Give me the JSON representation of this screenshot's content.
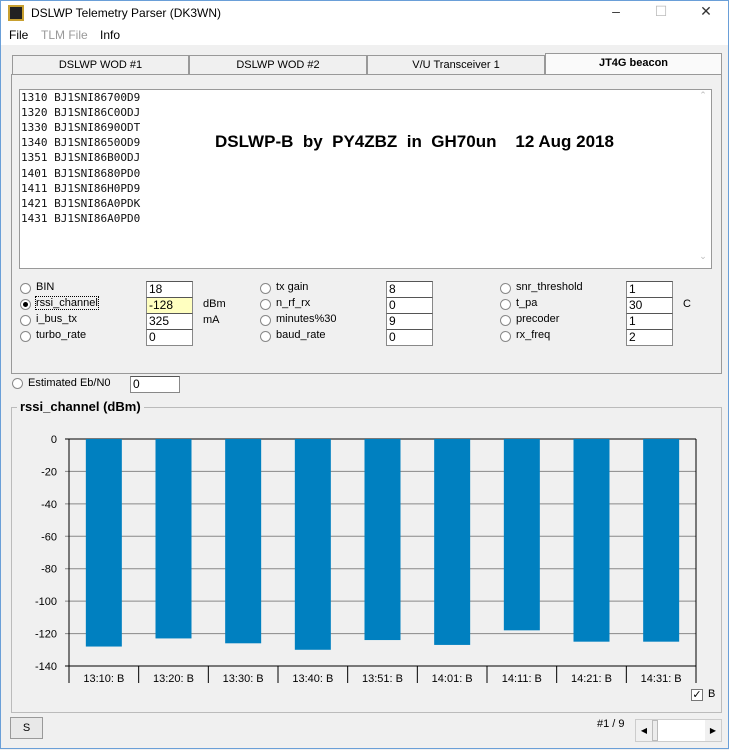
{
  "window": {
    "title": "DSLWP Telemetry Parser (DK3WN)",
    "controls": [
      "minimize",
      "maximize",
      "close"
    ]
  },
  "menu": [
    {
      "label": "File",
      "enabled": true
    },
    {
      "label": "TLM File",
      "enabled": false
    },
    {
      "label": "Info",
      "enabled": true
    }
  ],
  "tabs": [
    {
      "label": "DSLWP WOD #1"
    },
    {
      "label": "DSLWP WOD #2"
    },
    {
      "label": "V/U Transceiver 1"
    },
    {
      "label": "JT4G beacon",
      "active": true
    }
  ],
  "log_lines": [
    "1310 BJ1SNI86700D9",
    "1320 BJ1SNI86C0ODJ",
    "1330 BJ1SNI8690ODT",
    "1340 BJ1SNI8650OD9",
    "1351 BJ1SNI86B0ODJ",
    "1401 BJ1SNI8680PD0",
    "1411 BJ1SNI86H0PD9",
    "1421 BJ1SNI86A0PDK",
    "1431 BJ1SNI86A0PD0"
  ],
  "banner": "DSLWP-B  by  PY4ZBZ  in  GH70un    12 Aug 2018",
  "params": [
    {
      "label": "BIN",
      "value": "18",
      "unit": ""
    },
    {
      "label": "rssi_channel",
      "value": "-128",
      "unit": "dBm",
      "selected": true
    },
    {
      "label": "i_bus_tx",
      "value": "325",
      "unit": "mA"
    },
    {
      "label": "turbo_rate",
      "value": "0",
      "unit": ""
    },
    {
      "label": "tx gain",
      "value": "8",
      "unit": ""
    },
    {
      "label": "n_rf_rx",
      "value": "0",
      "unit": ""
    },
    {
      "label": "minutes%30",
      "value": "9",
      "unit": ""
    },
    {
      "label": "baud_rate",
      "value": "0",
      "unit": ""
    },
    {
      "label": "snr_threshold",
      "value": "1",
      "unit": ""
    },
    {
      "label": "t_pa",
      "value": "30",
      "unit": "C"
    },
    {
      "label": "precoder",
      "value": "1",
      "unit": ""
    },
    {
      "label": "rx_freq",
      "value": "2",
      "unit": ""
    }
  ],
  "eb_n0": {
    "label": "Estimated Eb/N0",
    "value": "0"
  },
  "chart_data": {
    "type": "bar",
    "title": "rssi_channel (dBm)",
    "categories": [
      "13:10: B",
      "13:20: B",
      "13:30: B",
      "13:40: B",
      "13:51: B",
      "14:01: B",
      "14:11: B",
      "14:21: B",
      "14:31: B"
    ],
    "values": [
      -128,
      -123,
      -126,
      -130,
      -124,
      -127,
      -118,
      -125,
      -125
    ],
    "ylim": [
      -140,
      0
    ],
    "yticks": [
      "0",
      "-20",
      "-40",
      "-60",
      "-80",
      "-100",
      "-120",
      "-140"
    ],
    "grid": true,
    "color": "#0080c0",
    "legend": {
      "label": "B",
      "checked": true,
      "placement": "bottom-right"
    }
  },
  "footer": {
    "s_button": "S",
    "page": "#1 / 9"
  }
}
